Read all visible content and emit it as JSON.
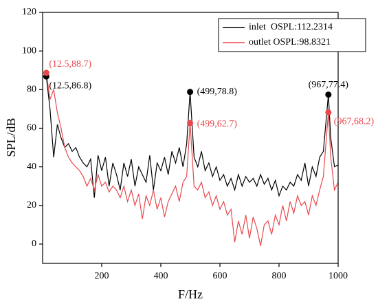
{
  "chart_data": {
    "type": "line",
    "x_label": "F/Hz",
    "y_label": "SPL/dB",
    "xlim": [
      0,
      1000
    ],
    "xticks": [
      200,
      400,
      600,
      800,
      1000
    ],
    "ylim": [
      -10,
      120
    ],
    "yticks": [
      0,
      20,
      40,
      60,
      80,
      100,
      120
    ],
    "legend": "upper right",
    "x": [
      12.5,
      25,
      37.5,
      50,
      62.5,
      75,
      87.5,
      100,
      112.5,
      125,
      137.5,
      150,
      162.5,
      175,
      187.5,
      200,
      212.5,
      225,
      237.5,
      250,
      262.5,
      275,
      287.5,
      300,
      312.5,
      325,
      337.5,
      350,
      362.5,
      375,
      387.5,
      400,
      412.5,
      425,
      437.5,
      450,
      462.5,
      475,
      487.5,
      499,
      512.5,
      525,
      537.5,
      550,
      562.5,
      575,
      587.5,
      600,
      612.5,
      625,
      637.5,
      650,
      662.5,
      675,
      687.5,
      700,
      712.5,
      725,
      737.5,
      750,
      762.5,
      775,
      787.5,
      800,
      812.5,
      825,
      837.5,
      850,
      862.5,
      875,
      887.5,
      900,
      912.5,
      925,
      937.5,
      950,
      967,
      975,
      987.5,
      1000
    ],
    "series": [
      {
        "name": "inlet  OSPL:112.2314",
        "color": "#000000",
        "values": [
          86.8,
          70,
          45,
          62,
          55,
          50,
          52,
          48,
          50,
          45,
          42,
          40,
          44,
          24,
          46,
          38,
          45,
          30,
          42,
          36,
          28,
          42,
          35,
          44,
          30,
          40,
          36,
          32,
          46,
          28,
          42,
          38,
          45,
          36,
          48,
          42,
          50,
          40,
          52,
          78.8,
          45,
          40,
          48,
          38,
          42,
          35,
          40,
          33,
          36,
          30,
          34,
          28,
          36,
          30,
          35,
          32,
          34,
          30,
          36,
          31,
          34,
          28,
          33,
          25,
          30,
          28,
          32,
          30,
          36,
          33,
          42,
          30,
          40,
          35,
          45,
          48,
          77.4,
          55,
          40,
          41
        ]
      },
      {
        "name": "outlet OSPL:98.8321",
        "color": "#e8474b",
        "values": [
          88.7,
          75,
          80,
          68,
          60,
          50,
          45,
          42,
          40,
          38,
          35,
          30,
          34,
          28,
          36,
          30,
          32,
          27,
          30,
          28,
          24,
          30,
          22,
          28,
          20,
          26,
          13,
          25,
          20,
          28,
          18,
          24,
          14,
          22,
          26,
          30,
          22,
          32,
          35,
          62.7,
          30,
          28,
          32,
          24,
          27,
          20,
          25,
          18,
          22,
          15,
          18,
          1,
          12,
          5,
          15,
          3,
          14,
          8,
          -1,
          10,
          12,
          5,
          15,
          10,
          20,
          12,
          22,
          16,
          25,
          20,
          22,
          15,
          25,
          20,
          28,
          35,
          68.2,
          45,
          28,
          32
        ]
      }
    ],
    "annotations": [
      {
        "text": "(12.5,86.8)",
        "x": 12.5,
        "y": 86.8,
        "series": 0
      },
      {
        "text": "(12.5,88.7)",
        "x": 12.5,
        "y": 88.7,
        "series": 1
      },
      {
        "text": "(499,78.8)",
        "x": 499,
        "y": 78.8,
        "series": 0
      },
      {
        "text": "(499,62.7)",
        "x": 499,
        "y": 62.7,
        "series": 1
      },
      {
        "text": "(967,77.4)",
        "x": 967,
        "y": 77.4,
        "series": 0
      },
      {
        "text": "(967,68.2)",
        "x": 967,
        "y": 68.2,
        "series": 1
      }
    ]
  }
}
